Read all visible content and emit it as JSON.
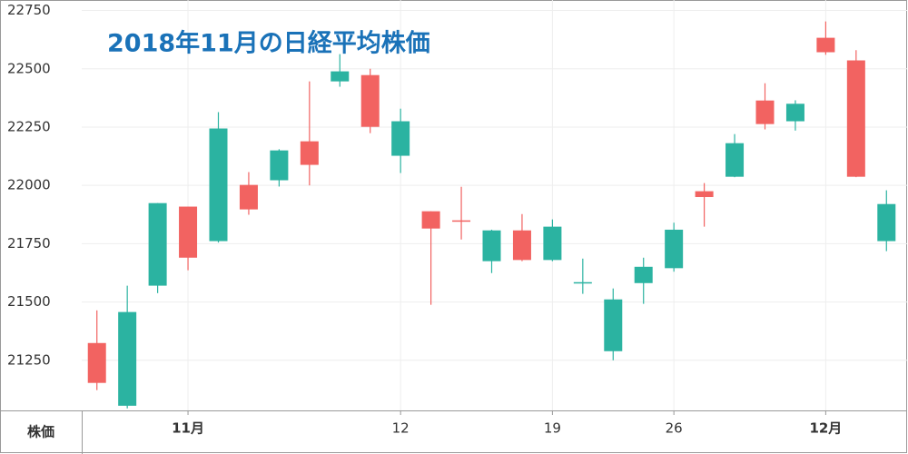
{
  "chart_data": {
    "type": "candlestick",
    "title": "2018年11月の日経平均株価",
    "y_label": "株価",
    "categories": [
      null,
      null,
      null,
      "11月",
      null,
      null,
      null,
      null,
      null,
      null,
      "12",
      null,
      null,
      null,
      null,
      "19",
      null,
      null,
      null,
      "26",
      null,
      null,
      null,
      null,
      "12月",
      null,
      null
    ],
    "open": [
      21324,
      21055,
      21570,
      21909,
      21761,
      22002,
      22022,
      22189,
      22446,
      22473,
      22127,
      21889,
      21850,
      21675,
      21807,
      21680,
      21580,
      21289,
      21581,
      21645,
      21975,
      22037,
      22364,
      22275,
      22633,
      22536,
      21761
    ],
    "close": [
      21153,
      21457,
      21924,
      21690,
      22244,
      21897,
      22150,
      22088,
      22489,
      22251,
      22275,
      21815,
      21846,
      21807,
      21680,
      21823,
      21585,
      21511,
      21651,
      21810,
      21950,
      22181,
      22263,
      22350,
      22571,
      22037,
      21920
    ],
    "high": [
      21464,
      21570,
      21924,
      21909,
      22314,
      22057,
      22155,
      22446,
      22563,
      22500,
      22329,
      21889,
      21994,
      21810,
      21877,
      21854,
      21686,
      21558,
      21690,
      21840,
      22010,
      22220,
      22438,
      22365,
      22703,
      22580,
      21979
    ],
    "low": [
      21122,
      21044,
      21538,
      21636,
      21755,
      21874,
      21995,
      22000,
      22423,
      22224,
      22053,
      21488,
      21768,
      21624,
      21675,
      21675,
      21535,
      21250,
      21492,
      21630,
      21823,
      22035,
      22240,
      22235,
      22560,
      22035,
      21718
    ],
    "up_color": "#2bb3a1",
    "down_color": "#f26361",
    "ylim": [
      21035,
      22795
    ],
    "yticks": [
      21250,
      21500,
      21750,
      22000,
      22250,
      22500,
      22750
    ],
    "grid": true
  }
}
